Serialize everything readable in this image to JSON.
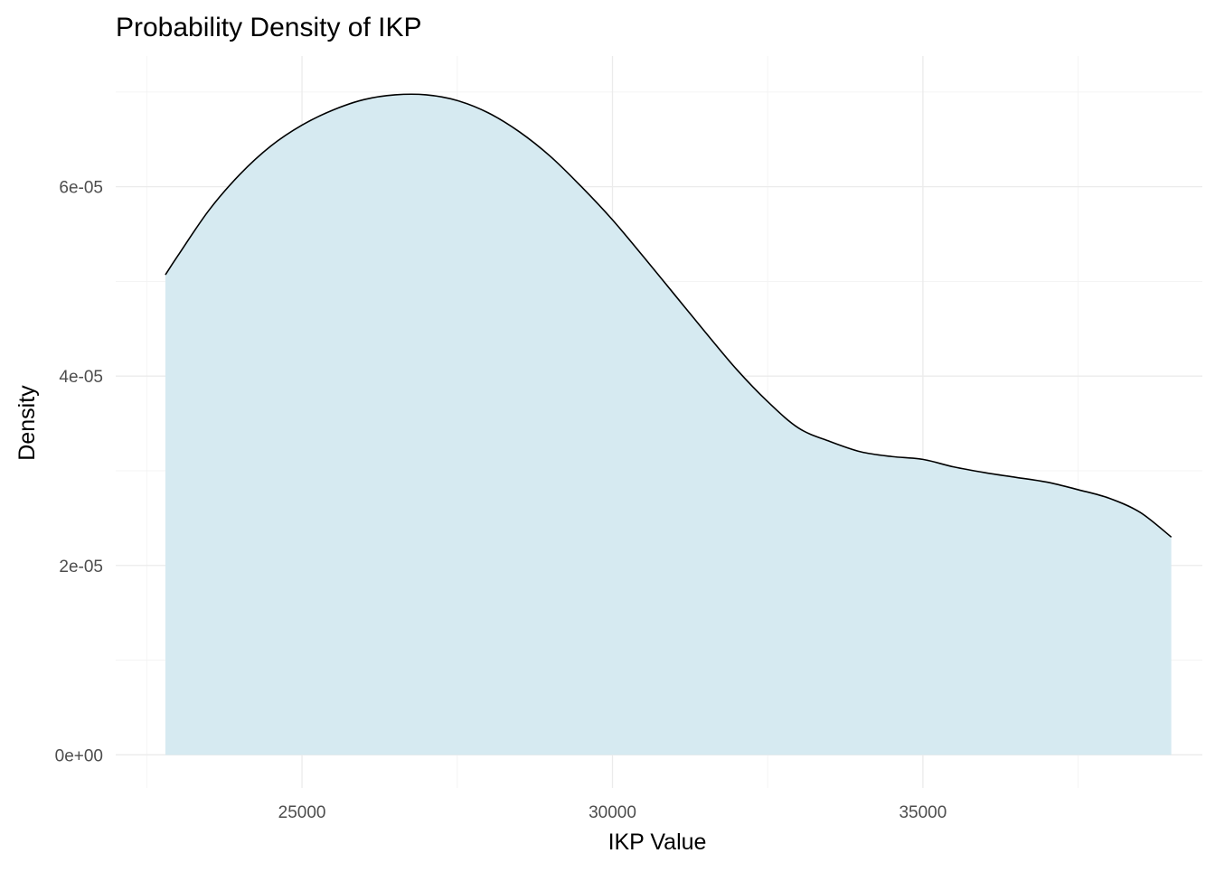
{
  "chart_data": {
    "type": "area",
    "title": "Probability Density of IKP",
    "xlabel": "IKP Value",
    "ylabel": "Density",
    "xlim": [
      22000,
      39500
    ],
    "ylim": [
      -3.5e-06,
      7.38e-05
    ],
    "x_ticks": [
      25000,
      30000,
      35000
    ],
    "x_tick_labels": [
      "25000",
      "30000",
      "35000"
    ],
    "y_ticks": [
      0,
      2e-05,
      4e-05,
      6e-05
    ],
    "y_tick_labels": [
      "0e+00",
      "2e-05",
      "4e-05",
      "6e-05"
    ],
    "x_minor_ticks": [
      22500,
      27500,
      32500,
      37500
    ],
    "y_minor_ticks": [
      1e-05,
      3e-05,
      5e-05,
      7e-05
    ],
    "grid": true,
    "legend": "none",
    "fill_color": "#d6eaf1",
    "line_color": "#000000",
    "series": [
      {
        "x": [
          22800,
          23000,
          23500,
          24000,
          24500,
          25000,
          25500,
          26000,
          26500,
          27000,
          27500,
          28000,
          28500,
          29000,
          29500,
          30000,
          30500,
          31000,
          31500,
          32000,
          32500,
          33000,
          33500,
          34000,
          34500,
          35000,
          35500,
          36000,
          36500,
          37000,
          37500,
          38000,
          38500,
          39000
        ],
        "y": [
          5.07e-05,
          5.27e-05,
          5.75e-05,
          6.13e-05,
          6.43e-05,
          6.65e-05,
          6.81e-05,
          6.92e-05,
          6.97e-05,
          6.97e-05,
          6.91e-05,
          6.78e-05,
          6.58e-05,
          6.32e-05,
          6e-05,
          5.65e-05,
          5.26e-05,
          4.86e-05,
          4.46e-05,
          4.07e-05,
          3.73e-05,
          3.45e-05,
          3.31e-05,
          3.2e-05,
          3.15e-05,
          3.12e-05,
          3.04e-05,
          2.98e-05,
          2.93e-05,
          2.88e-05,
          2.8e-05,
          2.71e-05,
          2.56e-05,
          2.3e-05
        ]
      }
    ]
  }
}
